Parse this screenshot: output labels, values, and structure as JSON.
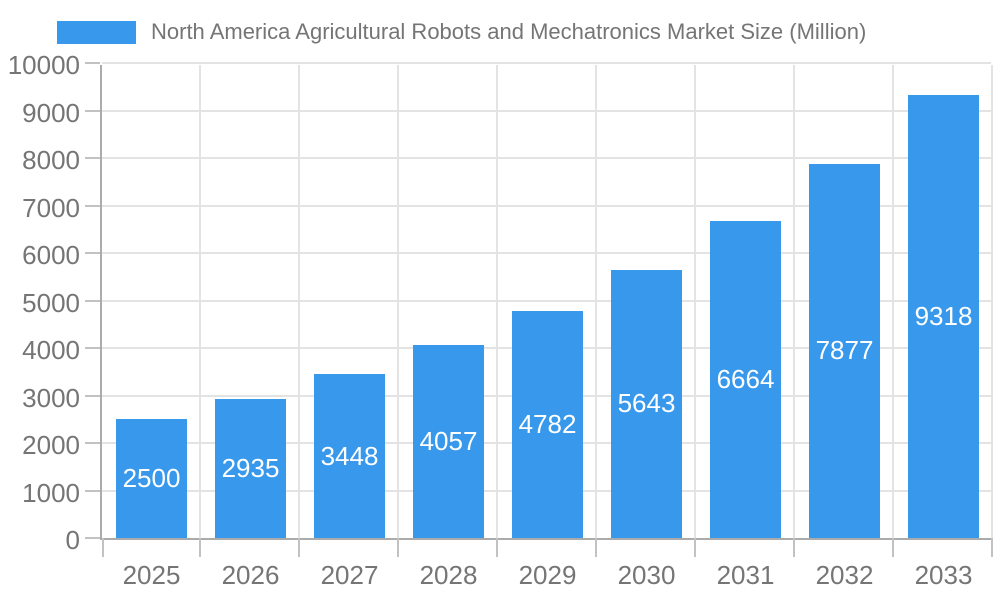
{
  "legend": {
    "label": "North America Agricultural Robots and Mechatronics Market Size (Million)"
  },
  "chart_data": {
    "type": "bar",
    "title": "North America Agricultural Robots and Mechatronics Market Size (Million)",
    "categories": [
      "2025",
      "2026",
      "2027",
      "2028",
      "2029",
      "2030",
      "2031",
      "2032",
      "2033"
    ],
    "values": [
      2500,
      2935,
      3448,
      4057,
      4782,
      5643,
      6664,
      7877,
      9318
    ],
    "series": [
      {
        "name": "North America Agricultural Robots and Mechatronics Market Size (Million)",
        "values": [
          2500,
          2935,
          3448,
          4057,
          4782,
          5643,
          6664,
          7877,
          9318
        ]
      }
    ],
    "xlabel": "",
    "ylabel": "",
    "ylim": [
      0,
      10000
    ],
    "ytick_step": 1000,
    "yticks": [
      0,
      1000,
      2000,
      3000,
      4000,
      5000,
      6000,
      7000,
      8000,
      9000,
      10000
    ],
    "grid": true,
    "legend_position": "top-left",
    "value_labels": "inside-center-white",
    "colors": {
      "bar": "#3899EC",
      "value_text": "#FFFFFF",
      "axis_text": "#757575",
      "grid": "#E3E3E3",
      "axis_line": "#ABABAB",
      "tick": "#C2C2C2"
    }
  }
}
